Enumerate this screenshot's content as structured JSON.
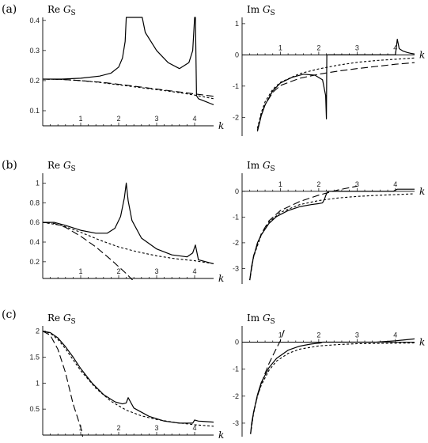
{
  "panel_labels": [
    "(a)",
    "(b)",
    "(c)"
  ],
  "chart_data": [
    {
      "type": "line",
      "panel": "(a)",
      "title": "",
      "ylabel": "Re G_S",
      "ylabel_main": "Re ",
      "ylabel_italic": "G",
      "ylabel_sub": "S",
      "xlabel": "k",
      "xlim": [
        0,
        4.5
      ],
      "ylim": [
        0.05,
        0.41
      ],
      "xticks": [
        1,
        2,
        3,
        4
      ],
      "yticks": [
        0.1,
        0.2,
        0.3,
        0.4
      ],
      "xtick_labels": [
        "1",
        "2",
        "3",
        "4"
      ],
      "ytick_labels": [
        "0.1",
        "0.2",
        "0.3",
        "0.4"
      ],
      "series": [
        {
          "style": "solid",
          "x": [
            0,
            0.5,
            1,
            1.5,
            1.8,
            2.0,
            2.1,
            2.17,
            2.2,
            2.62,
            2.7,
            3.0,
            3.3,
            3.6,
            3.85,
            3.95,
            4.0,
            4.02,
            4.05,
            4.1,
            4.2,
            4.3,
            4.4,
            4.5
          ],
          "y": [
            0.205,
            0.205,
            0.208,
            0.215,
            0.225,
            0.245,
            0.275,
            0.33,
            0.41,
            0.41,
            0.36,
            0.3,
            0.26,
            0.24,
            0.26,
            0.3,
            0.41,
            0.41,
            0.15,
            0.14,
            0.135,
            0.13,
            0.125,
            0.12
          ]
        },
        {
          "style": "dashed",
          "x": [
            0,
            0.5,
            1,
            1.5,
            2,
            2.5,
            3,
            3.5,
            4,
            4.5
          ],
          "y": [
            0.205,
            0.204,
            0.2,
            0.195,
            0.188,
            0.18,
            0.172,
            0.164,
            0.156,
            0.148
          ]
        },
        {
          "style": "dotted",
          "x": [
            0,
            0.5,
            1,
            1.5,
            2,
            2.5,
            3,
            3.5,
            4,
            4.5
          ],
          "y": [
            0.205,
            0.204,
            0.2,
            0.194,
            0.186,
            0.178,
            0.17,
            0.162,
            0.152,
            0.14
          ]
        }
      ]
    },
    {
      "type": "line",
      "panel": "(a)",
      "title": "",
      "ylabel": "Im G_S",
      "ylabel_main": "Im ",
      "ylabel_italic": "G",
      "ylabel_sub": "S",
      "xlabel": "k",
      "xlim": [
        0,
        4.5
      ],
      "ylim": [
        -2.6,
        1.2
      ],
      "xticks": [
        1,
        2,
        3,
        4
      ],
      "yticks": [
        -2,
        -1,
        0,
        1
      ],
      "xtick_labels": [
        "1",
        "2",
        "3",
        "4"
      ],
      "ytick_labels": [
        "-2",
        "-1",
        "0",
        "1"
      ],
      "series": [
        {
          "style": "solid",
          "x": [
            0.4,
            0.5,
            0.6,
            0.8,
            1.0,
            1.3,
            1.6,
            1.9,
            2.1,
            2.18,
            2.2,
            2.21,
            2.5,
            3.0,
            3.5,
            3.9,
            4.0,
            4.05,
            4.1,
            4.2,
            4.3,
            4.4,
            4.5
          ],
          "y": [
            -2.45,
            -1.95,
            -1.6,
            -1.15,
            -0.9,
            -0.72,
            -0.62,
            -0.65,
            -0.8,
            -1.3,
            -2.05,
            0,
            0,
            0,
            0,
            0,
            0,
            0.5,
            0.2,
            0.12,
            0.08,
            0.05,
            0.03
          ]
        },
        {
          "style": "dashed",
          "x": [
            0.4,
            0.5,
            0.6,
            0.8,
            1.0,
            1.5,
            2.0,
            2.5,
            3.0,
            3.5,
            4.0,
            4.5
          ],
          "y": [
            -2.4,
            -1.9,
            -1.6,
            -1.2,
            -0.98,
            -0.75,
            -0.62,
            -0.52,
            -0.44,
            -0.37,
            -0.3,
            -0.25
          ]
        },
        {
          "style": "dotted",
          "x": [
            0.4,
            0.5,
            0.6,
            0.8,
            1.0,
            1.5,
            2.0,
            2.5,
            3.0,
            3.5,
            4.0,
            4.5
          ],
          "y": [
            -2.35,
            -1.85,
            -1.5,
            -1.1,
            -0.88,
            -0.6,
            -0.45,
            -0.33,
            -0.24,
            -0.18,
            -0.14,
            -0.1
          ]
        }
      ]
    },
    {
      "type": "line",
      "panel": "(b)",
      "title": "",
      "ylabel": "Re G_S",
      "ylabel_main": "Re ",
      "ylabel_italic": "G",
      "ylabel_sub": "S",
      "xlabel": "k",
      "xlim": [
        0,
        4.5
      ],
      "ylim": [
        0.03,
        1.1
      ],
      "xticks": [
        1,
        2,
        3,
        4
      ],
      "yticks": [
        0.2,
        0.4,
        0.6,
        0.8,
        1
      ],
      "xtick_labels": [
        "1",
        "2",
        "3",
        "4"
      ],
      "ytick_labels": [
        "0.2",
        "0.4",
        "0.6",
        "0.8",
        "1"
      ],
      "series": [
        {
          "style": "solid",
          "x": [
            0,
            0.3,
            0.6,
            1.0,
            1.4,
            1.7,
            1.9,
            2.05,
            2.15,
            2.2,
            2.25,
            2.35,
            2.6,
            3.0,
            3.4,
            3.8,
            3.95,
            4.02,
            4.1,
            4.3,
            4.5
          ],
          "y": [
            0.6,
            0.6,
            0.57,
            0.52,
            0.49,
            0.49,
            0.54,
            0.66,
            0.85,
            1.0,
            0.82,
            0.62,
            0.44,
            0.33,
            0.27,
            0.25,
            0.29,
            0.37,
            0.22,
            0.2,
            0.18
          ]
        },
        {
          "style": "dashed",
          "x": [
            0,
            0.3,
            0.6,
            1.0,
            1.4,
            1.8,
            2.2,
            2.6
          ],
          "y": [
            0.6,
            0.59,
            0.55,
            0.46,
            0.35,
            0.22,
            0.08,
            -0.08
          ]
        },
        {
          "style": "dotted",
          "x": [
            0,
            0.5,
            1.0,
            1.5,
            2.0,
            2.5,
            3.0,
            3.5,
            4.0,
            4.5
          ],
          "y": [
            0.6,
            0.57,
            0.5,
            0.42,
            0.35,
            0.3,
            0.26,
            0.23,
            0.21,
            0.18
          ]
        }
      ]
    },
    {
      "type": "line",
      "panel": "(b)",
      "title": "",
      "ylabel": "Im G_S",
      "ylabel_main": "Im ",
      "ylabel_italic": "G",
      "ylabel_sub": "S",
      "xlabel": "k",
      "xlim": [
        0,
        4.5
      ],
      "ylim": [
        -3.6,
        0.7
      ],
      "xticks": [
        1,
        2,
        3,
        4
      ],
      "yticks": [
        -3,
        -2,
        -1,
        0
      ],
      "xtick_labels": [
        "1",
        "2",
        "3",
        "4"
      ],
      "ytick_labels": [
        "-3",
        "-2",
        "-1",
        "0"
      ],
      "series": [
        {
          "style": "solid",
          "x": [
            0.2,
            0.25,
            0.3,
            0.4,
            0.5,
            0.7,
            0.9,
            1.2,
            1.5,
            1.8,
            2.0,
            2.1,
            2.15,
            2.2,
            2.25,
            2.4,
            3.0,
            3.5,
            3.95,
            4.0,
            4.05,
            4.5
          ],
          "y": [
            -3.45,
            -2.9,
            -2.55,
            -2.0,
            -1.7,
            -1.25,
            -0.98,
            -0.75,
            -0.6,
            -0.52,
            -0.48,
            -0.45,
            -0.3,
            -0.1,
            0,
            0,
            0,
            0,
            0,
            0.05,
            0.08,
            0.08
          ]
        },
        {
          "style": "dashed",
          "x": [
            0.2,
            0.3,
            0.5,
            0.7,
            1.0,
            1.5,
            2.0,
            2.5,
            3.0
          ],
          "y": [
            -3.45,
            -2.5,
            -1.65,
            -1.15,
            -0.75,
            -0.4,
            -0.15,
            0.05,
            0.2
          ]
        },
        {
          "style": "dotted",
          "x": [
            0.2,
            0.3,
            0.5,
            0.7,
            1.0,
            1.5,
            2.0,
            2.5,
            3.0,
            3.5,
            4.0,
            4.5
          ],
          "y": [
            -3.45,
            -2.55,
            -1.7,
            -1.2,
            -0.82,
            -0.52,
            -0.36,
            -0.26,
            -0.2,
            -0.16,
            -0.13,
            -0.1
          ]
        }
      ]
    },
    {
      "type": "line",
      "panel": "(c)",
      "title": "",
      "ylabel": "Re G_S",
      "ylabel_main": "Re ",
      "ylabel_italic": "G",
      "ylabel_sub": "S",
      "xlabel": "k",
      "xlim": [
        0,
        4.5
      ],
      "ylim": [
        0,
        2.1
      ],
      "xticks": [
        1,
        2,
        3,
        4
      ],
      "yticks": [
        0.5,
        1,
        1.5,
        2
      ],
      "xtick_labels": [
        "1",
        "2",
        "3",
        "4"
      ],
      "ytick_labels": [
        "0.5",
        "1",
        "1.5",
        "2"
      ],
      "series": [
        {
          "style": "solid",
          "x": [
            0,
            0.2,
            0.4,
            0.6,
            0.8,
            1.0,
            1.3,
            1.6,
            1.9,
            2.1,
            2.2,
            2.25,
            2.4,
            2.8,
            3.2,
            3.6,
            3.95,
            4.0,
            4.1,
            4.5
          ],
          "y": [
            2.0,
            1.97,
            1.87,
            1.7,
            1.5,
            1.28,
            1.0,
            0.78,
            0.64,
            0.6,
            0.62,
            0.72,
            0.52,
            0.36,
            0.27,
            0.23,
            0.23,
            0.29,
            0.27,
            0.25
          ]
        },
        {
          "style": "dashed",
          "x": [
            0,
            0.2,
            0.4,
            0.6,
            0.8,
            1.0,
            1.1
          ],
          "y": [
            2.0,
            1.92,
            1.65,
            1.2,
            0.6,
            0.15,
            -0.2
          ]
        },
        {
          "style": "dotted",
          "x": [
            0,
            0.2,
            0.4,
            0.6,
            0.8,
            1.0,
            1.4,
            1.8,
            2.2,
            2.6,
            3.0,
            3.5,
            4.0,
            4.5
          ],
          "y": [
            2.0,
            1.96,
            1.84,
            1.66,
            1.45,
            1.24,
            0.9,
            0.65,
            0.48,
            0.37,
            0.3,
            0.24,
            0.2,
            0.17
          ]
        }
      ]
    },
    {
      "type": "line",
      "panel": "(c)",
      "title": "",
      "ylabel": "Im G_S",
      "ylabel_main": "Im ",
      "ylabel_italic": "G",
      "ylabel_sub": "S",
      "xlabel": "k",
      "xlim": [
        0,
        4.5
      ],
      "ylim": [
        -3.5,
        0.6
      ],
      "xticks": [
        1,
        2,
        3,
        4
      ],
      "yticks": [
        -3,
        -2,
        -1,
        0
      ],
      "xtick_labels": [
        "1",
        "2",
        "3",
        "4"
      ],
      "ytick_labels": [
        "-3",
        "-2",
        "-1",
        "0"
      ],
      "series": [
        {
          "style": "solid",
          "x": [
            0.22,
            0.25,
            0.3,
            0.4,
            0.5,
            0.7,
            0.9,
            1.2,
            1.5,
            1.8,
            2.05,
            2.1,
            2.2,
            2.5,
            3.0,
            3.5,
            4.0,
            4.5
          ],
          "y": [
            -3.4,
            -3.0,
            -2.6,
            -1.95,
            -1.5,
            -0.95,
            -0.6,
            -0.3,
            -0.15,
            -0.07,
            -0.03,
            0,
            0,
            0,
            0,
            0,
            0.05,
            0.12
          ]
        },
        {
          "style": "dashed",
          "x": [
            0.22,
            0.3,
            0.4,
            0.5,
            0.6,
            0.7,
            0.8,
            0.9,
            1.0,
            1.1
          ],
          "y": [
            -3.4,
            -2.6,
            -2.0,
            -1.55,
            -1.15,
            -0.8,
            -0.5,
            -0.22,
            0.05,
            0.45
          ]
        },
        {
          "style": "dotted",
          "x": [
            0.22,
            0.3,
            0.4,
            0.5,
            0.7,
            0.9,
            1.2,
            1.5,
            2.0,
            2.5,
            3.0,
            3.5,
            4.0,
            4.5
          ],
          "y": [
            -3.4,
            -2.65,
            -2.0,
            -1.6,
            -1.05,
            -0.7,
            -0.42,
            -0.26,
            -0.14,
            -0.09,
            -0.06,
            -0.05,
            -0.04,
            -0.03
          ]
        }
      ]
    }
  ]
}
